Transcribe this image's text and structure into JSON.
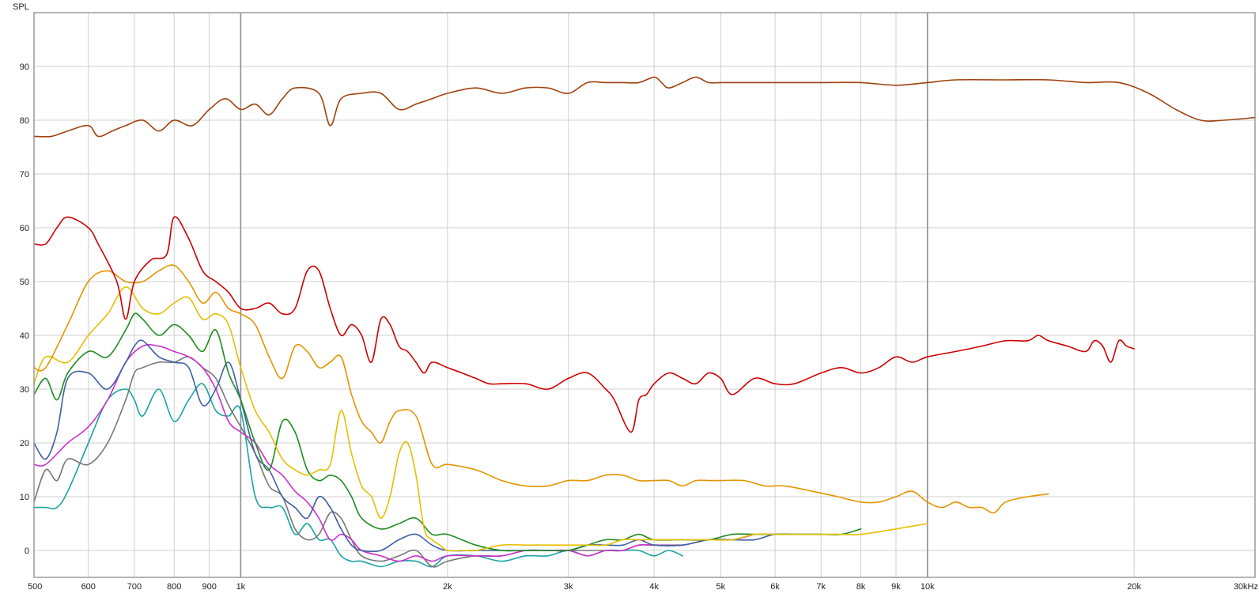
{
  "chart_data": {
    "type": "line",
    "title": "",
    "ylabel": "SPL",
    "xlabel": "",
    "x_scale": "log",
    "xlim": [
      500,
      30000
    ],
    "ylim": [
      -5,
      100
    ],
    "grid": true,
    "legend": "none",
    "x_ticks": [
      {
        "value": 500,
        "label": "500",
        "major": false
      },
      {
        "value": 600,
        "label": "600",
        "major": false
      },
      {
        "value": 700,
        "label": "700",
        "major": false
      },
      {
        "value": 800,
        "label": "800",
        "major": false
      },
      {
        "value": 900,
        "label": "900",
        "major": false
      },
      {
        "value": 1000,
        "label": "1k",
        "major": true
      },
      {
        "value": 2000,
        "label": "2k",
        "major": false
      },
      {
        "value": 3000,
        "label": "3k",
        "major": false
      },
      {
        "value": 4000,
        "label": "4k",
        "major": false
      },
      {
        "value": 5000,
        "label": "5k",
        "major": false
      },
      {
        "value": 6000,
        "label": "6k",
        "major": false
      },
      {
        "value": 7000,
        "label": "7k",
        "major": false
      },
      {
        "value": 8000,
        "label": "8k",
        "major": false
      },
      {
        "value": 9000,
        "label": "9k",
        "major": false
      },
      {
        "value": 10000,
        "label": "10k",
        "major": true
      },
      {
        "value": 20000,
        "label": "20k",
        "major": false
      },
      {
        "value": 30000,
        "label": "30kHz",
        "major": false
      }
    ],
    "y_ticks": [
      {
        "value": 0,
        "label": "0"
      },
      {
        "value": 10,
        "label": "10"
      },
      {
        "value": 20,
        "label": "20"
      },
      {
        "value": 30,
        "label": "30"
      },
      {
        "value": 40,
        "label": "40"
      },
      {
        "value": 50,
        "label": "50"
      },
      {
        "value": 60,
        "label": "60"
      },
      {
        "value": 70,
        "label": "70"
      },
      {
        "value": 80,
        "label": "80"
      },
      {
        "value": 90,
        "label": "90"
      }
    ],
    "series": [
      {
        "color": "#a0410d",
        "x": [
          500,
          530,
          560,
          600,
          620,
          650,
          680,
          720,
          760,
          800,
          850,
          900,
          950,
          1000,
          1050,
          1100,
          1150,
          1200,
          1300,
          1350,
          1400,
          1500,
          1600,
          1700,
          1800,
          1900,
          2000,
          2200,
          2400,
          2600,
          2800,
          3000,
          3200,
          3400,
          3600,
          3800,
          4000,
          4100,
          4200,
          4400,
          4600,
          4800,
          5000,
          5400,
          5800,
          6000,
          6500,
          7000,
          8000,
          9000,
          10000,
          11000,
          13000,
          15000,
          17000,
          19000,
          21000,
          23000,
          25000,
          27000,
          30000
        ],
        "y": [
          77,
          77,
          78,
          79,
          77,
          78,
          79,
          80,
          78,
          80,
          79,
          82,
          84,
          82,
          83,
          81,
          84,
          86,
          85,
          79,
          84,
          85,
          85,
          82,
          83,
          84,
          85,
          86,
          85,
          86,
          86,
          85,
          87,
          87,
          87,
          87,
          88,
          87,
          86,
          87,
          88,
          87,
          87,
          87,
          87,
          87,
          87,
          87,
          87,
          86.5,
          87,
          87.5,
          87.5,
          87.5,
          87,
          87,
          85,
          82,
          80,
          80,
          80.5
        ]
      },
      {
        "color": "#cc0000",
        "x": [
          500,
          520,
          540,
          560,
          600,
          620,
          660,
          680,
          700,
          740,
          780,
          800,
          840,
          880,
          920,
          960,
          1000,
          1050,
          1100,
          1150,
          1200,
          1250,
          1300,
          1350,
          1400,
          1450,
          1500,
          1550,
          1600,
          1650,
          1700,
          1750,
          1800,
          1850,
          1900,
          2000,
          2100,
          2200,
          2300,
          2400,
          2600,
          2800,
          3000,
          3200,
          3400,
          3500,
          3700,
          3800,
          3900,
          4000,
          4200,
          4400,
          4600,
          4800,
          5000,
          5200,
          5600,
          6000,
          6400,
          7000,
          7500,
          8000,
          8500,
          9000,
          9500,
          10000,
          11000,
          12000,
          13000,
          14000,
          14500,
          15000,
          16000,
          17000,
          17500,
          18000,
          18500,
          19000,
          19500,
          20000
        ],
        "y": [
          57,
          57,
          60,
          62,
          60,
          57,
          50,
          43,
          50,
          54,
          55,
          62,
          58,
          52,
          50,
          48,
          45,
          45,
          46,
          44,
          45,
          52,
          52,
          45,
          40,
          42,
          40,
          35,
          43,
          42,
          38,
          37,
          35,
          33,
          35,
          34,
          33,
          32,
          31,
          31,
          31,
          30,
          32,
          33,
          30,
          28,
          22,
          28,
          29,
          31,
          33,
          32,
          31,
          33,
          32,
          29,
          32,
          31,
          31,
          33,
          34,
          33,
          34,
          36,
          35,
          36,
          37,
          38,
          39,
          39,
          40,
          39,
          38,
          37,
          39,
          38,
          35,
          39,
          38,
          37.5
        ]
      },
      {
        "color": "#e39500",
        "x": [
          500,
          520,
          560,
          600,
          640,
          680,
          720,
          760,
          800,
          840,
          880,
          920,
          960,
          1000,
          1050,
          1100,
          1150,
          1200,
          1250,
          1300,
          1350,
          1400,
          1450,
          1500,
          1550,
          1600,
          1650,
          1700,
          1800,
          1900,
          2000,
          2200,
          2400,
          2600,
          2800,
          3000,
          3200,
          3400,
          3600,
          3800,
          4000,
          4200,
          4400,
          4600,
          4800,
          5000,
          5400,
          5800,
          6200,
          6800,
          7400,
          8000,
          8500,
          9000,
          9500,
          10000,
          10500,
          11000,
          11500,
          12000,
          12500,
          13000,
          14000,
          15000
        ],
        "y": [
          34,
          34,
          42,
          50,
          52,
          50,
          50,
          52,
          53,
          50,
          46,
          48,
          45,
          44,
          42,
          36,
          32,
          38,
          37,
          34,
          35,
          36,
          29,
          24,
          22,
          20,
          24,
          26,
          25,
          16,
          16,
          15,
          13,
          12,
          12,
          13,
          13,
          14,
          14,
          13,
          13,
          13,
          12,
          13,
          13,
          13,
          13,
          12,
          12,
          11,
          10,
          9,
          9,
          10,
          11,
          9,
          8,
          9,
          8,
          8,
          7,
          9,
          10,
          10.5
        ]
      },
      {
        "color": "#e6bf00",
        "x": [
          500,
          520,
          560,
          600,
          640,
          680,
          720,
          760,
          800,
          840,
          880,
          920,
          960,
          1000,
          1050,
          1100,
          1150,
          1200,
          1250,
          1300,
          1350,
          1400,
          1450,
          1500,
          1550,
          1600,
          1650,
          1700,
          1750,
          1800,
          1850,
          1900,
          1950,
          2000,
          2100,
          2200,
          2400,
          2600,
          2800,
          3000,
          3200,
          3400,
          3600,
          3800,
          4000,
          4400,
          4800,
          5200,
          5600,
          6000,
          6500,
          7000,
          7500,
          8000,
          9000,
          10000
        ],
        "y": [
          31,
          36,
          35,
          40,
          44,
          49,
          45,
          44,
          46,
          47,
          43,
          44,
          42,
          34,
          26,
          22,
          17,
          15,
          14,
          15,
          16,
          26,
          18,
          12,
          10,
          6,
          10,
          18,
          20,
          14,
          4,
          2,
          1,
          0,
          0,
          0,
          1,
          1,
          1,
          1,
          1,
          1,
          2,
          2,
          2,
          2,
          2,
          2,
          3,
          3,
          3,
          3,
          3,
          3,
          4,
          5
        ]
      },
      {
        "color": "#1e8c1e",
        "x": [
          500,
          520,
          540,
          560,
          600,
          640,
          680,
          700,
          720,
          760,
          800,
          840,
          880,
          920,
          960,
          1000,
          1050,
          1100,
          1150,
          1200,
          1250,
          1300,
          1350,
          1400,
          1450,
          1500,
          1600,
          1700,
          1800,
          1900,
          2000,
          2200,
          2400,
          2600,
          2800,
          3000,
          3200,
          3400,
          3600,
          3800,
          4000,
          4400,
          4800,
          5200,
          5600,
          6000,
          6500,
          7000,
          7500,
          8000
        ],
        "y": [
          29,
          32,
          28,
          33,
          37,
          36,
          41,
          44,
          43,
          40,
          42,
          40,
          37,
          41,
          33,
          28,
          20,
          15,
          24,
          22,
          15,
          13,
          14,
          13,
          10,
          6,
          4,
          5,
          6,
          3,
          3,
          1,
          0,
          0,
          0,
          0,
          1,
          2,
          2,
          3,
          2,
          2,
          2,
          3,
          3,
          3,
          3,
          3,
          3,
          4
        ]
      },
      {
        "color": "#3d5fa6",
        "x": [
          500,
          520,
          540,
          560,
          600,
          640,
          680,
          700,
          720,
          760,
          800,
          840,
          880,
          920,
          960,
          1000,
          1050,
          1100,
          1150,
          1200,
          1250,
          1300,
          1350,
          1400,
          1450,
          1500,
          1600,
          1700,
          1800,
          1900,
          2000,
          2200,
          2400,
          2600,
          2800,
          3000,
          3200,
          3400,
          3600,
          3800,
          4000,
          4400,
          4800,
          5200,
          5600,
          6000,
          6500,
          7000
        ],
        "y": [
          20,
          17,
          22,
          32,
          33,
          30,
          35,
          38,
          39,
          36,
          35,
          34,
          27,
          30,
          35,
          28,
          18,
          15,
          10,
          8,
          6,
          10,
          8,
          4,
          1,
          0,
          0,
          2,
          3,
          1,
          0,
          0,
          0,
          0,
          0,
          0,
          1,
          1,
          1,
          2,
          1,
          1,
          2,
          2,
          2,
          3,
          3,
          3
        ]
      },
      {
        "color": "#cc33cc",
        "x": [
          500,
          520,
          560,
          600,
          640,
          680,
          720,
          760,
          800,
          840,
          880,
          920,
          960,
          1000,
          1050,
          1100,
          1150,
          1200,
          1250,
          1300,
          1350,
          1400,
          1450,
          1500,
          1600,
          1700,
          1800,
          1900,
          2000,
          2200,
          2400,
          2600,
          2800,
          3000,
          3200,
          3400,
          3600,
          3800,
          4000,
          4400,
          4800,
          5200,
          5600
        ],
        "y": [
          16,
          16,
          20,
          23,
          28,
          35,
          38,
          38,
          37,
          36,
          34,
          30,
          24,
          22,
          20,
          16,
          14,
          11,
          9,
          6,
          2,
          3,
          2,
          0,
          -1,
          -2,
          -1,
          -2,
          -1,
          -1,
          -1,
          0,
          0,
          0,
          -1,
          0,
          0,
          1,
          1,
          1,
          2,
          2,
          3
        ]
      },
      {
        "color": "#777777",
        "x": [
          500,
          520,
          540,
          560,
          600,
          640,
          680,
          700,
          720,
          760,
          800,
          840,
          880,
          920,
          960,
          1000,
          1050,
          1100,
          1150,
          1200,
          1250,
          1300,
          1350,
          1400,
          1450,
          1500,
          1600,
          1700,
          1800,
          1900,
          2000,
          2200,
          2400,
          2600,
          2800,
          3000,
          3200,
          3400,
          3600,
          3800,
          4000,
          4400
        ],
        "y": [
          9,
          15,
          13,
          17,
          16,
          20,
          28,
          33,
          34,
          35,
          35,
          36,
          34,
          32,
          27,
          23,
          18,
          12,
          10,
          4,
          2,
          3,
          7,
          6,
          2,
          -1,
          -2,
          -1,
          0,
          -3,
          -2,
          -1,
          -1,
          0,
          0,
          0,
          0,
          0,
          0,
          1,
          1,
          1
        ]
      },
      {
        "color": "#1aa3a3",
        "x": [
          500,
          520,
          540,
          560,
          600,
          640,
          680,
          700,
          720,
          760,
          800,
          840,
          880,
          920,
          960,
          1000,
          1050,
          1100,
          1150,
          1200,
          1250,
          1300,
          1350,
          1400,
          1450,
          1500,
          1600,
          1700,
          1800,
          1900,
          2000,
          2200,
          2400,
          2600,
          2800,
          3000,
          3200,
          3400,
          3600,
          3800,
          4000,
          4200,
          4400
        ],
        "y": [
          8,
          8,
          8,
          11,
          20,
          28,
          30,
          28,
          25,
          30,
          24,
          28,
          31,
          26,
          25,
          26,
          10,
          8,
          8,
          3,
          5,
          2,
          2,
          -1,
          -2,
          -2,
          -3,
          -2,
          -2,
          -3,
          -1,
          -1,
          -2,
          -1,
          -1,
          0,
          -1,
          0,
          0,
          0,
          -1,
          0,
          -1
        ]
      }
    ]
  }
}
